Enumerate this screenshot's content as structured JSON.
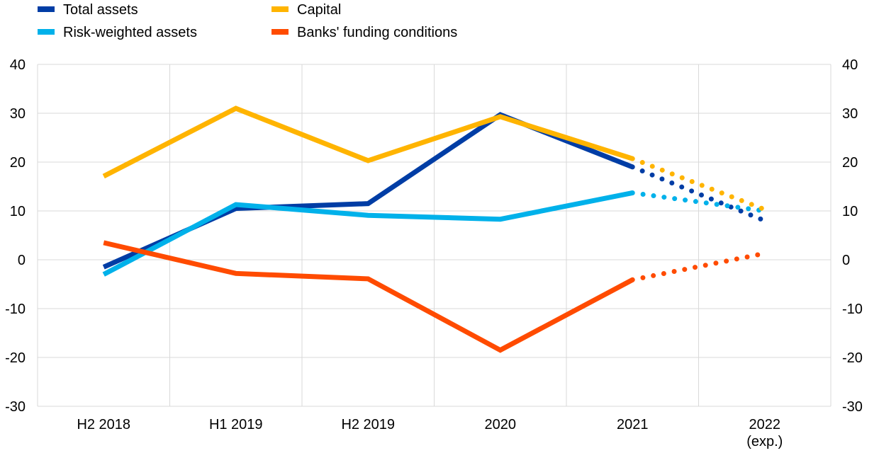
{
  "chart_data": {
    "type": "line",
    "categories": [
      "H2 2018",
      "H1 2019",
      "H2 2019",
      "2020",
      "2021",
      "2022"
    ],
    "category_sublabels": [
      "",
      "",
      "",
      "",
      "",
      "(exp.)"
    ],
    "ylim": [
      -30,
      40
    ],
    "yticks": [
      40,
      30,
      20,
      10,
      0,
      -10,
      -20,
      -30
    ],
    "legend_position": "top-left",
    "grid": true,
    "dotted_from_index": 4,
    "series": [
      {
        "name": "Total assets",
        "color": "#003da5",
        "values": [
          -1.5,
          10.5,
          11.5,
          29.7,
          19,
          8
        ]
      },
      {
        "name": "Risk-weighted assets",
        "color": "#00b1ea",
        "values": [
          -3,
          11.3,
          9.1,
          8.3,
          13.7,
          10
        ]
      },
      {
        "name": "Capital",
        "color": "#ffb400",
        "values": [
          17.1,
          31,
          20.3,
          29.3,
          20.7,
          10.3
        ]
      },
      {
        "name": "Banks' funding conditions",
        "color": "#ff4b00",
        "values": [
          3.5,
          -2.8,
          -3.9,
          -18.5,
          -4.1,
          1.3
        ]
      }
    ]
  }
}
